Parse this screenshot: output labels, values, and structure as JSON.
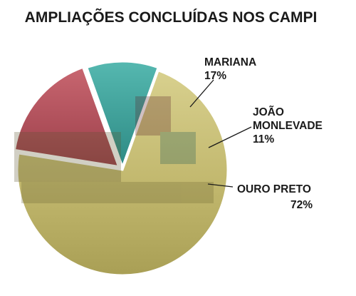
{
  "chart_data": {
    "type": "pie",
    "title": "AMPLIAÇÕES CONCLUÍDAS NOS CAMPI",
    "slices": [
      {
        "name": "MARIANA",
        "value": 17,
        "label": "17%",
        "color": "#b8505a"
      },
      {
        "name": "JOÃO MONLEVADE",
        "name_lines": [
          "JOÃO",
          "MONLEVADE"
        ],
        "value": 11,
        "label": "11%",
        "color": "#3aa59e"
      },
      {
        "name": "OURO PRETO",
        "value": 72,
        "label": "72%",
        "color": "#c9c07a"
      }
    ]
  }
}
